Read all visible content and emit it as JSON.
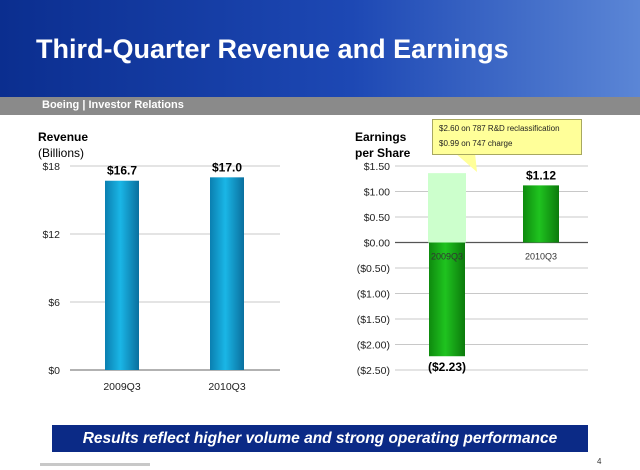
{
  "header": {
    "title": "Third-Quarter Revenue and Earnings",
    "subtitle": "Boeing | Investor Relations"
  },
  "colors": {
    "header_blue": "#1d48b4",
    "revenue_bar": "#1ab6e6",
    "eps_bar": "#1fc31f",
    "eps_overlay": "#ccffcc",
    "banner": "#0b2a86",
    "callout": "#ffff99"
  },
  "chart_data": [
    {
      "type": "bar",
      "title": "Revenue",
      "ylabel": "(Billions)",
      "categories": [
        "2009Q3",
        "2010Q3"
      ],
      "values": [
        16.7,
        17.0
      ],
      "data_labels": [
        "$16.7",
        "$17.0"
      ],
      "yticks": [
        0,
        6,
        12,
        18
      ],
      "ytick_labels": [
        "$0",
        "$6",
        "$12",
        "$18"
      ],
      "ylim": [
        0,
        18
      ],
      "grid": true
    },
    {
      "type": "bar",
      "title": "Earnings per Share",
      "title_lines": [
        "Earnings",
        "per Share"
      ],
      "categories": [
        "2009Q3",
        "2010Q3"
      ],
      "values": [
        -2.23,
        1.12
      ],
      "data_labels": [
        "($2.23)",
        "$1.12"
      ],
      "overlay": {
        "category": "2009Q3",
        "value": 1.36
      },
      "yticks": [
        1.5,
        1.0,
        0.5,
        0.0,
        -0.5,
        -1.0,
        -1.5,
        -2.0,
        -2.5
      ],
      "ytick_labels": [
        "$1.50",
        "$1.00",
        "$0.50",
        "$0.00",
        "($0.50)",
        "($1.00)",
        "($1.50)",
        "($2.00)",
        "($2.50)"
      ],
      "ylim": [
        -2.5,
        1.5
      ],
      "grid": true,
      "callout_lines": [
        "$2.60 on 787 R&D reclassification",
        "$0.99 on 747 charge"
      ]
    }
  ],
  "banner": "Results reflect higher volume and strong operating performance",
  "page_number": "4"
}
